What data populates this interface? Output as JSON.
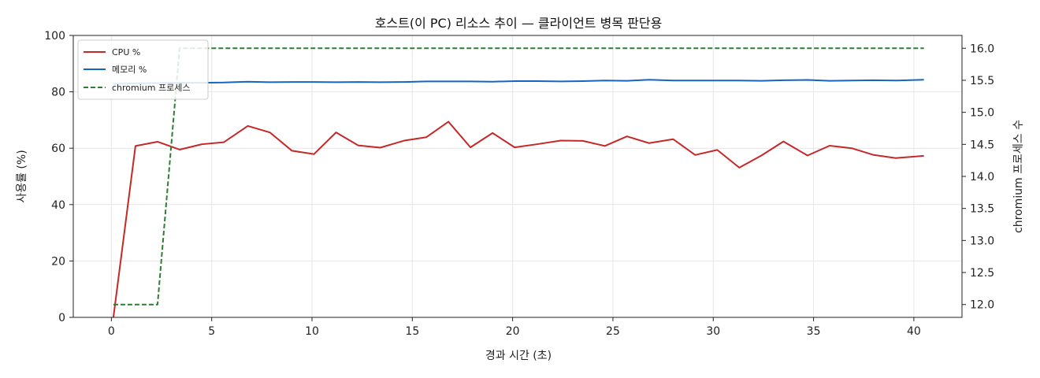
{
  "chart_data": {
    "type": "line",
    "title": "호스트(이 PC) 리소스 추이 — 클라이언트 병목 판단용",
    "xlabel": "경과 시간 (초)",
    "ylabel": "사용률 (%)",
    "y2label": "chromium 프로세스 수",
    "xlim": [
      -1.9,
      42.4
    ],
    "ylim": [
      0,
      100
    ],
    "y2lim": [
      11.8,
      16.2
    ],
    "xticks": [
      "0",
      "5",
      "10",
      "15",
      "20",
      "25",
      "30",
      "35",
      "40"
    ],
    "yticks": [
      "0",
      "20",
      "40",
      "60",
      "80",
      "100"
    ],
    "y2ticks": [
      "12.0",
      "12.5",
      "13.0",
      "13.5",
      "14.0",
      "14.5",
      "15.0",
      "15.5",
      "16.0"
    ],
    "grid": true,
    "legend_position": "top-left",
    "x": [
      0.1,
      1.2,
      2.3,
      3.4,
      4.5,
      5.6,
      6.8,
      7.9,
      9.0,
      10.1,
      11.2,
      12.3,
      13.4,
      14.6,
      15.7,
      16.8,
      17.9,
      19.0,
      20.1,
      21.2,
      22.4,
      23.5,
      24.6,
      25.7,
      26.8,
      28.0,
      29.1,
      30.2,
      31.3,
      32.4,
      33.5,
      34.7,
      35.8,
      36.9,
      38.0,
      39.1,
      40.5
    ],
    "series": [
      {
        "name": "CPU %",
        "axis": "left",
        "color": "#c62828",
        "style": "solid",
        "values": [
          0,
          60.8,
          62.3,
          59.5,
          61.4,
          62.1,
          67.9,
          65.6,
          59.1,
          57.9,
          65.6,
          61.0,
          60.2,
          62.7,
          63.9,
          69.4,
          60.3,
          65.4,
          60.3,
          61.4,
          62.7,
          62.6,
          60.8,
          64.2,
          61.8,
          63.2,
          57.6,
          59.4,
          53.1,
          57.4,
          62.4,
          57.4,
          60.9,
          60.0,
          57.6,
          56.5,
          57.3
        ]
      },
      {
        "name": "메모리 %",
        "axis": "left",
        "color": "#1565c0",
        "style": "solid",
        "values": [
          82.8,
          83.0,
          83.1,
          83.2,
          83.2,
          83.3,
          83.6,
          83.4,
          83.5,
          83.5,
          83.4,
          83.5,
          83.4,
          83.5,
          83.7,
          83.7,
          83.7,
          83.6,
          83.8,
          83.8,
          83.7,
          83.8,
          84.0,
          83.9,
          84.3,
          84.0,
          84.0,
          84.0,
          84.0,
          83.9,
          84.1,
          84.2,
          83.9,
          84.0,
          84.1,
          84.0,
          84.3
        ]
      },
      {
        "name": "chromium 프로세스",
        "axis": "right",
        "color": "#2e7d32",
        "style": "dashed",
        "values": [
          12,
          12,
          12,
          16,
          16,
          16,
          16,
          16,
          16,
          16,
          16,
          16,
          16,
          16,
          16,
          16,
          16,
          16,
          16,
          16,
          16,
          16,
          16,
          16,
          16,
          16,
          16,
          16,
          16,
          16,
          16,
          16,
          16,
          16,
          16,
          16,
          16
        ]
      }
    ]
  }
}
